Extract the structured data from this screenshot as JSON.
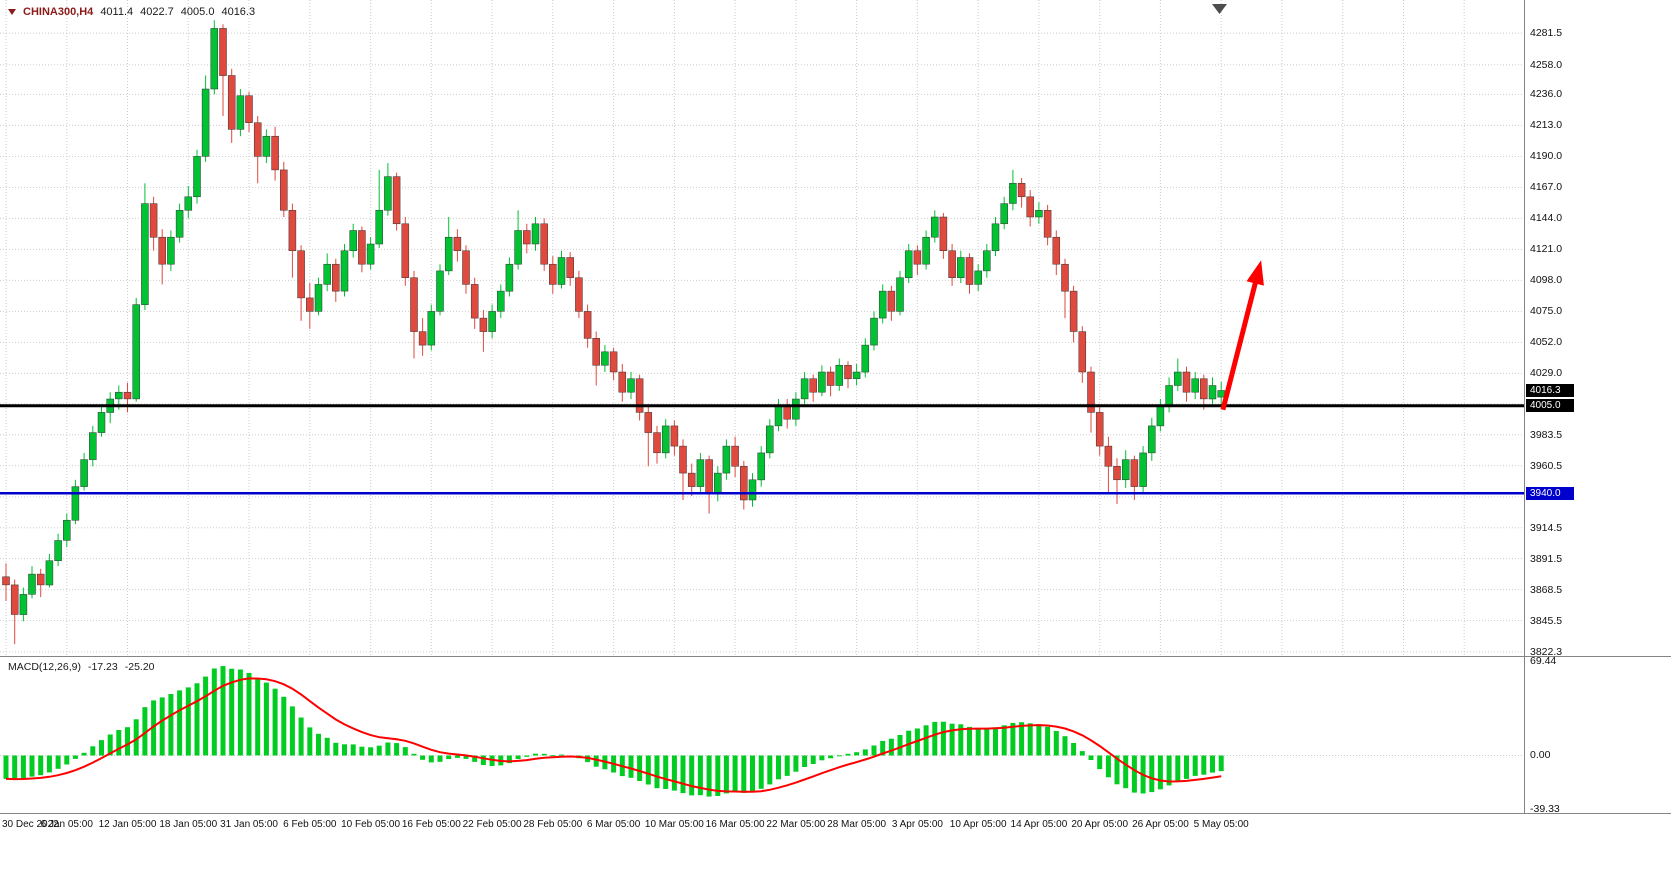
{
  "title": {
    "symbol": "CHINA300,H4",
    "open": "4011.4",
    "high": "4022.7",
    "low": "4005.0",
    "close": "4016.3"
  },
  "macd_label": {
    "name": "MACD(12,26,9)",
    "main_value": "-17.23",
    "signal_value": "-25.20"
  },
  "chart_data": {
    "type": "candlestick",
    "symbol": "CHINA300",
    "timeframe": "H4",
    "x_labels": [
      "30 Dec 2022",
      "6 Jan 05:00",
      "12 Jan 05:00",
      "18 Jan 05:00",
      "31 Jan 05:00",
      "6 Feb 05:00",
      "10 Feb 05:00",
      "16 Feb 05:00",
      "22 Feb 05:00",
      "28 Feb 05:00",
      "6 Mar 05:00",
      "10 Mar 05:00",
      "16 Mar 05:00",
      "22 Mar 05:00",
      "28 Mar 05:00",
      "3 Apr 05:00",
      "10 Apr 05:00",
      "14 Apr 05:00",
      "20 Apr 05:00",
      "26 Apr 05:00",
      "5 May 05:00"
    ],
    "candles_per_label": 7,
    "price_axis": {
      "tick_labels": [
        "4281.5",
        "4258.0",
        "4236.0",
        "4213.0",
        "4190.0",
        "4167.0",
        "4144.0",
        "4121.0",
        "4098.0",
        "4075.0",
        "4052.0",
        "4029.0",
        "3983.5",
        "3960.5",
        "3914.5",
        "3891.5",
        "3868.5",
        "3845.5",
        "3822.3"
      ],
      "hidden_grid_levels": [
        4006.3,
        3937.3
      ],
      "top_price": 4287.5,
      "bottom_price": 3820.0
    },
    "candles": [
      [
        3878,
        3888,
        3860,
        3872
      ],
      [
        3872,
        3876,
        3828,
        3850
      ],
      [
        3850,
        3870,
        3845,
        3865
      ],
      [
        3865,
        3886,
        3862,
        3880
      ],
      [
        3880,
        3884,
        3863,
        3872
      ],
      [
        3872,
        3895,
        3870,
        3890
      ],
      [
        3890,
        3910,
        3886,
        3905
      ],
      [
        3905,
        3925,
        3900,
        3920
      ],
      [
        3920,
        3950,
        3917,
        3945
      ],
      [
        3945,
        3970,
        3942,
        3965
      ],
      [
        3965,
        3990,
        3960,
        3985
      ],
      [
        3985,
        4006,
        3982,
        4000
      ],
      [
        4000,
        4015,
        3992,
        4010
      ],
      [
        4010,
        4020,
        4002,
        4015
      ],
      [
        4015,
        4022,
        4000,
        4010
      ],
      [
        4010,
        4085,
        4008,
        4080
      ],
      [
        4080,
        4170,
        4076,
        4155
      ],
      [
        4155,
        4160,
        4120,
        4130
      ],
      [
        4130,
        4136,
        4095,
        4110
      ],
      [
        4110,
        4135,
        4105,
        4130
      ],
      [
        4130,
        4155,
        4126,
        4150
      ],
      [
        4150,
        4168,
        4144,
        4160
      ],
      [
        4160,
        4195,
        4155,
        4190
      ],
      [
        4190,
        4250,
        4186,
        4240
      ],
      [
        4240,
        4291,
        4236,
        4285
      ],
      [
        4285,
        4288,
        4220,
        4250
      ],
      [
        4250,
        4255,
        4200,
        4210
      ],
      [
        4210,
        4240,
        4205,
        4235
      ],
      [
        4235,
        4238,
        4208,
        4215
      ],
      [
        4215,
        4220,
        4170,
        4190
      ],
      [
        4190,
        4210,
        4185,
        4205
      ],
      [
        4205,
        4212,
        4172,
        4180
      ],
      [
        4180,
        4186,
        4145,
        4150
      ],
      [
        4150,
        4155,
        4100,
        4120
      ],
      [
        4120,
        4124,
        4068,
        4085
      ],
      [
        4085,
        4096,
        4062,
        4075
      ],
      [
        4075,
        4100,
        4072,
        4095
      ],
      [
        4095,
        4118,
        4090,
        4110
      ],
      [
        4110,
        4114,
        4082,
        4090
      ],
      [
        4090,
        4125,
        4086,
        4120
      ],
      [
        4120,
        4140,
        4115,
        4135
      ],
      [
        4135,
        4138,
        4104,
        4110
      ],
      [
        4110,
        4130,
        4106,
        4125
      ],
      [
        4125,
        4180,
        4122,
        4150
      ],
      [
        4150,
        4185,
        4146,
        4175
      ],
      [
        4175,
        4178,
        4135,
        4140
      ],
      [
        4140,
        4145,
        4094,
        4100
      ],
      [
        4100,
        4105,
        4040,
        4060
      ],
      [
        4060,
        4070,
        4042,
        4050
      ],
      [
        4050,
        4080,
        4046,
        4075
      ],
      [
        4075,
        4110,
        4072,
        4105
      ],
      [
        4105,
        4145,
        4102,
        4130
      ],
      [
        4130,
        4136,
        4112,
        4120
      ],
      [
        4120,
        4124,
        4088,
        4095
      ],
      [
        4095,
        4100,
        4062,
        4070
      ],
      [
        4070,
        4076,
        4045,
        4060
      ],
      [
        4060,
        4080,
        4055,
        4075
      ],
      [
        4075,
        4095,
        4070,
        4090
      ],
      [
        4090,
        4115,
        4086,
        4110
      ],
      [
        4110,
        4150,
        4106,
        4135
      ],
      [
        4135,
        4140,
        4118,
        4125
      ],
      [
        4125,
        4145,
        4120,
        4140
      ],
      [
        4140,
        4144,
        4105,
        4110
      ],
      [
        4110,
        4116,
        4088,
        4095
      ],
      [
        4095,
        4120,
        4092,
        4115
      ],
      [
        4115,
        4119,
        4094,
        4100
      ],
      [
        4100,
        4105,
        4070,
        4075
      ],
      [
        4075,
        4080,
        4048,
        4055
      ],
      [
        4055,
        4060,
        4020,
        4035
      ],
      [
        4035,
        4050,
        4030,
        4045
      ],
      [
        4045,
        4048,
        4024,
        4030
      ],
      [
        4030,
        4036,
        4008,
        4015
      ],
      [
        4015,
        4030,
        4010,
        4025
      ],
      [
        4025,
        4028,
        3994,
        4000
      ],
      [
        4000,
        4005,
        3960,
        3985
      ],
      [
        3985,
        3990,
        3962,
        3970
      ],
      [
        3970,
        3995,
        3966,
        3990
      ],
      [
        3990,
        3994,
        3968,
        3975
      ],
      [
        3975,
        3980,
        3935,
        3955
      ],
      [
        3955,
        3962,
        3938,
        3945
      ],
      [
        3945,
        3970,
        3940,
        3965
      ],
      [
        3965,
        3968,
        3925,
        3940
      ],
      [
        3940,
        3960,
        3934,
        3955
      ],
      [
        3955,
        3980,
        3950,
        3975
      ],
      [
        3975,
        3982,
        3952,
        3960
      ],
      [
        3960,
        3964,
        3928,
        3935
      ],
      [
        3935,
        3955,
        3930,
        3950
      ],
      [
        3950,
        3975,
        3945,
        3970
      ],
      [
        3970,
        3995,
        3966,
        3990
      ],
      [
        3990,
        4010,
        3986,
        4005
      ],
      [
        4005,
        4010,
        3988,
        3995
      ],
      [
        3995,
        4015,
        3990,
        4010
      ],
      [
        4010,
        4030,
        4006,
        4025
      ],
      [
        4025,
        4028,
        4008,
        4015
      ],
      [
        4015,
        4035,
        4012,
        4030
      ],
      [
        4030,
        4034,
        4012,
        4020
      ],
      [
        4020,
        4040,
        4016,
        4035
      ],
      [
        4035,
        4038,
        4018,
        4025
      ],
      [
        4025,
        4036,
        4020,
        4030
      ],
      [
        4030,
        4055,
        4026,
        4050
      ],
      [
        4050,
        4075,
        4046,
        4070
      ],
      [
        4070,
        4095,
        4066,
        4090
      ],
      [
        4090,
        4094,
        4068,
        4075
      ],
      [
        4075,
        4105,
        4072,
        4100
      ],
      [
        4100,
        4125,
        4096,
        4120
      ],
      [
        4120,
        4124,
        4102,
        4110
      ],
      [
        4110,
        4135,
        4106,
        4130
      ],
      [
        4130,
        4150,
        4126,
        4145
      ],
      [
        4145,
        4148,
        4114,
        4120
      ],
      [
        4120,
        4125,
        4094,
        4100
      ],
      [
        4100,
        4120,
        4096,
        4115
      ],
      [
        4115,
        4118,
        4088,
        4095
      ],
      [
        4095,
        4110,
        4090,
        4105
      ],
      [
        4105,
        4125,
        4100,
        4120
      ],
      [
        4120,
        4145,
        4116,
        4140
      ],
      [
        4140,
        4160,
        4136,
        4155
      ],
      [
        4155,
        4180,
        4150,
        4170
      ],
      [
        4170,
        4174,
        4152,
        4160
      ],
      [
        4160,
        4165,
        4138,
        4145
      ],
      [
        4145,
        4156,
        4140,
        4150
      ],
      [
        4150,
        4154,
        4124,
        4130
      ],
      [
        4130,
        4135,
        4102,
        4110
      ],
      [
        4110,
        4114,
        4070,
        4090
      ],
      [
        4090,
        4094,
        4052,
        4060
      ],
      [
        4060,
        4064,
        4022,
        4030
      ],
      [
        4030,
        4034,
        3985,
        4000
      ],
      [
        4000,
        4006,
        3968,
        3975
      ],
      [
        3975,
        3982,
        3940,
        3960
      ],
      [
        3960,
        3966,
        3932,
        3950
      ],
      [
        3950,
        3972,
        3944,
        3965
      ],
      [
        3965,
        3968,
        3935,
        3945
      ],
      [
        3945,
        3975,
        3940,
        3970
      ],
      [
        3970,
        3996,
        3964,
        3990
      ],
      [
        3990,
        4010,
        3986,
        4005
      ],
      [
        4005,
        4026,
        4000,
        4020
      ],
      [
        4020,
        4040,
        4016,
        4030
      ],
      [
        4030,
        4034,
        4008,
        4015
      ],
      [
        4015,
        4030,
        4010,
        4025
      ],
      [
        4025,
        4028,
        4002,
        4010
      ],
      [
        4010,
        4026,
        4006,
        4020
      ],
      [
        4011.4,
        4022.7,
        4005.0,
        4016.3
      ]
    ],
    "hlines": [
      {
        "name": "horizontal-line-4005",
        "price": 4005.0,
        "color": "#000000",
        "width": 3,
        "badge": "4005.0",
        "badge_bg": "#000000"
      },
      {
        "name": "support-line-3940",
        "price": 3940.0,
        "color": "#0000CD",
        "width": 2.5,
        "badge": "3940.0",
        "badge_bg": "#0000CD"
      }
    ],
    "current_price": {
      "value": 4016.3,
      "badge": "4016.3",
      "badge_bg": "#000000"
    },
    "arrow": {
      "from_index": 140.2,
      "from_price": 4002,
      "to_index": 144.6,
      "to_price": 4113,
      "color": "#FF0000",
      "width": 5
    },
    "indicator": {
      "name": "MACD",
      "params": [
        12,
        26,
        9
      ],
      "main_value": -17.23,
      "signal_value": -25.2,
      "axis_tick_labels": [
        "69.44",
        "0.00",
        "-39.33"
      ],
      "axis_ticks": [
        69.44,
        0,
        -39.33
      ],
      "axis_max": 72,
      "axis_min": -41,
      "plot_max": 66,
      "plot_min": -36,
      "histogram_color": "#00CC22",
      "signal_color": "#FF0000"
    },
    "colors": {
      "up": "#00C232",
      "down": "#E0493E",
      "grid": "#CDCDCD",
      "background": "#FFFFFF",
      "axis_text": "#111111"
    }
  }
}
